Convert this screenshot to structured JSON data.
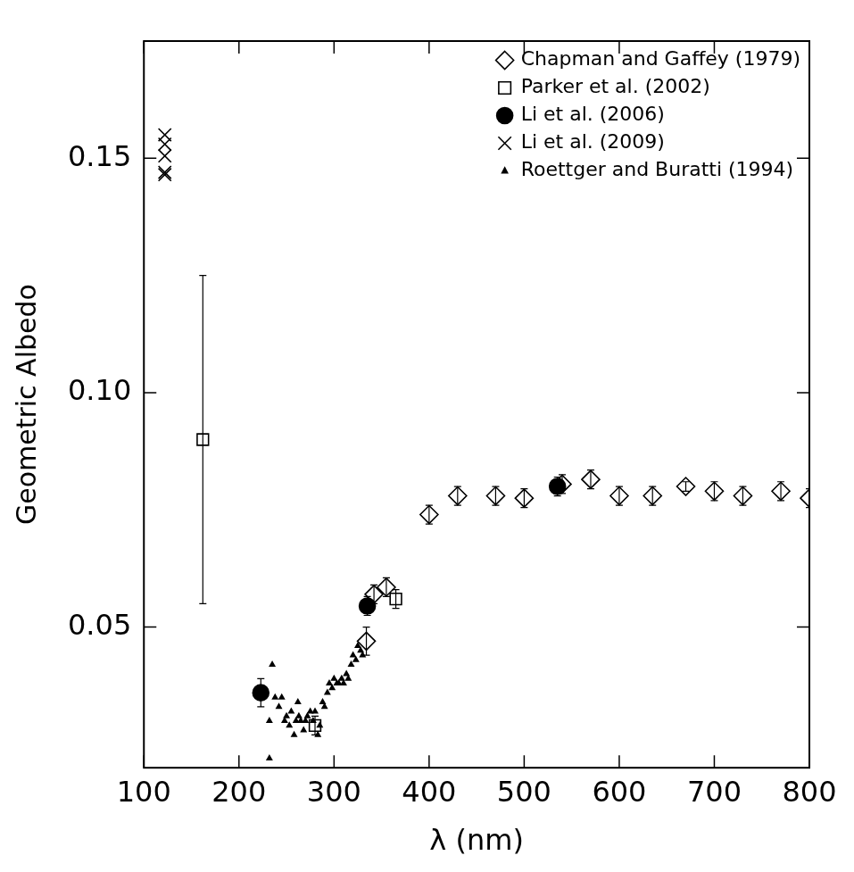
{
  "chart_data": {
    "type": "scatter",
    "x_label": "λ (nm)",
    "y_label": "Geometric Albedo",
    "xlim": [
      100,
      800
    ],
    "xticks": [
      100,
      200,
      300,
      400,
      500,
      600,
      700,
      800
    ],
    "ylim": [
      0.02,
      0.175
    ],
    "yticks": [
      0.05,
      {
        "value": 0.1,
        "label": "0.10"
      },
      0.15
    ],
    "grid": false,
    "legend": "top right",
    "series": [
      {
        "name": "Chapman and Gaffey (1979)",
        "color": "#000000",
        "marker": "diamond",
        "x": [
          334,
          342,
          355,
          400,
          430,
          470,
          500,
          540,
          570,
          600,
          635,
          670,
          700,
          730,
          770,
          800
        ],
        "values": [
          0.047,
          0.057,
          0.0585,
          0.074,
          0.078,
          0.078,
          0.0775,
          0.0805,
          0.0815,
          0.078,
          0.078,
          0.08,
          0.079,
          0.078,
          0.079,
          0.0775
        ],
        "errors": [
          0.003,
          0.002,
          0.002,
          0.002,
          0.002,
          0.002,
          0.002,
          0.002,
          0.002,
          0.002,
          0.002,
          0.001,
          0.002,
          0.002,
          0.002,
          0.002
        ]
      },
      {
        "name": "Parker et al. (2002)",
        "color": "#000000",
        "marker": "square",
        "x": [
          162,
          280,
          365
        ],
        "values": [
          0.09,
          0.029,
          0.056
        ],
        "errors": [
          0.035,
          0.002,
          0.002
        ]
      },
      {
        "name": "Li et al. (2006)",
        "color": "#000000",
        "marker": "filled_circle",
        "x": [
          223,
          335,
          535
        ],
        "values": [
          0.036,
          0.0545,
          0.08
        ],
        "errors": [
          0.003,
          0.002,
          0.002
        ]
      },
      {
        "name": "Li et al. (2009)",
        "color": "#000000",
        "marker": "x",
        "x": [
          122,
          122,
          122,
          122,
          122
        ],
        "values": [
          0.155,
          0.153,
          0.1505,
          0.147,
          0.1465
        ]
      },
      {
        "name": "Roettger and Buratti (1994)",
        "color": "#000000",
        "marker": "filled_triangle",
        "x": [
          232,
          232,
          235,
          238,
          242,
          245,
          248,
          250,
          253,
          255,
          258,
          260,
          262,
          263,
          265,
          268,
          270,
          272,
          275,
          278,
          280,
          283,
          285,
          288,
          290,
          293,
          295,
          298,
          300,
          303,
          305,
          308,
          310,
          313,
          315,
          318,
          320,
          323,
          325,
          328,
          330
        ],
        "values": [
          0.03,
          0.022,
          0.042,
          0.035,
          0.033,
          0.035,
          0.03,
          0.031,
          0.029,
          0.032,
          0.027,
          0.03,
          0.034,
          0.031,
          0.03,
          0.028,
          0.03,
          0.031,
          0.032,
          0.03,
          0.032,
          0.027,
          0.029,
          0.034,
          0.033,
          0.036,
          0.038,
          0.037,
          0.039,
          0.038,
          0.038,
          0.039,
          0.038,
          0.04,
          0.039,
          0.042,
          0.044,
          0.043,
          0.046,
          0.045,
          0.044
        ]
      }
    ]
  }
}
